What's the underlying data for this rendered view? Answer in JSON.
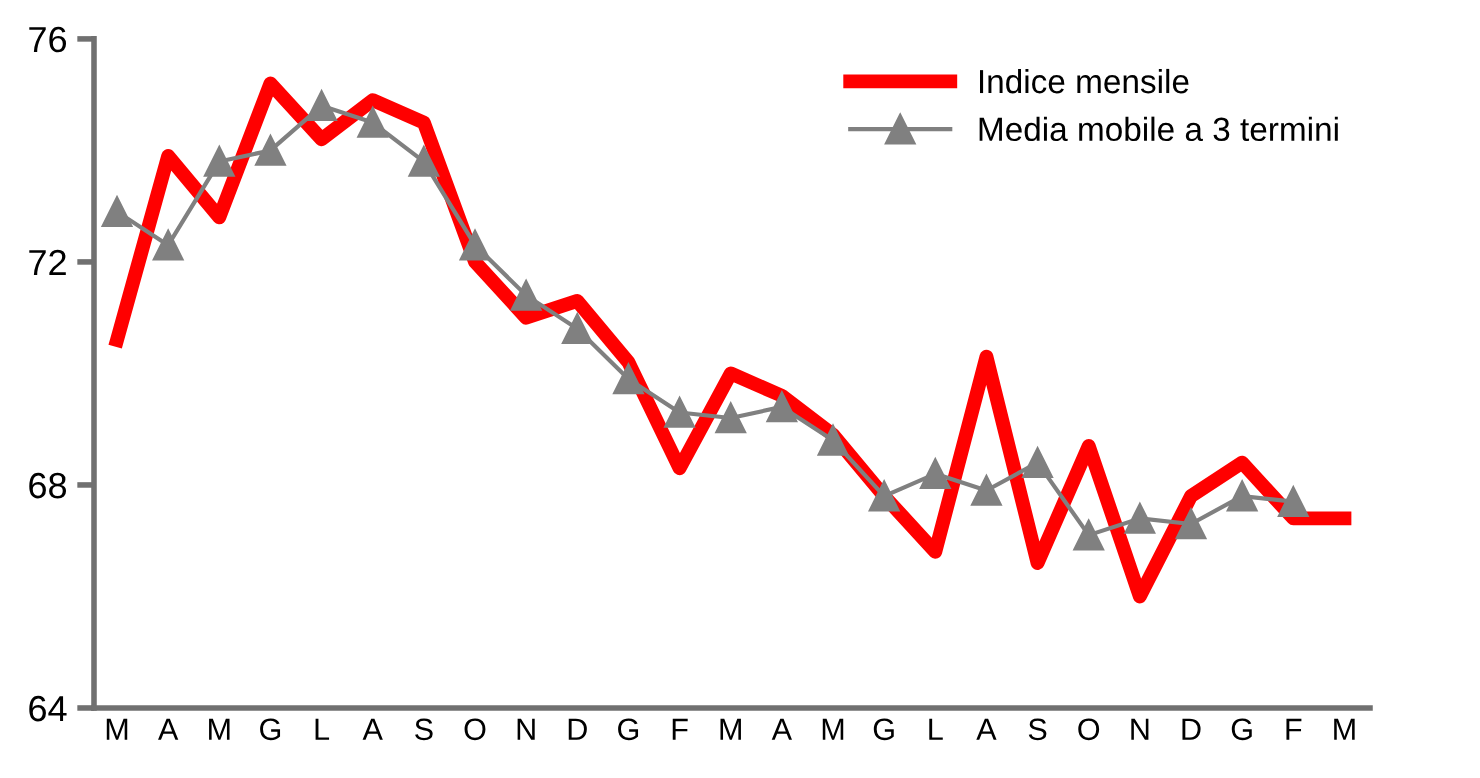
{
  "chart_data": {
    "type": "line",
    "categories": [
      "M",
      "A",
      "M",
      "G",
      "L",
      "A",
      "S",
      "O",
      "N",
      "D",
      "G",
      "F",
      "M",
      "A",
      "M",
      "G",
      "L",
      "A",
      "S",
      "O",
      "N",
      "D",
      "G",
      "F",
      "M"
    ],
    "series": [
      {
        "name": "Indice mensile",
        "color": "#ff0000",
        "marker": "none",
        "values": [
          70.6,
          73.9,
          72.8,
          75.2,
          74.2,
          74.9,
          74.5,
          72.0,
          71.0,
          71.3,
          70.2,
          68.3,
          70.0,
          69.6,
          68.9,
          67.8,
          66.8,
          70.3,
          66.6,
          68.7,
          66.0,
          67.8,
          68.4,
          67.4,
          67.4
        ]
      },
      {
        "name": "Media mobile a 3 termini",
        "color": "#808080",
        "marker": "triangle",
        "values": [
          72.9,
          72.3,
          73.8,
          74.0,
          74.8,
          74.5,
          73.8,
          72.3,
          71.4,
          70.8,
          69.9,
          69.3,
          69.2,
          69.4,
          68.8,
          67.8,
          68.2,
          67.9,
          68.4,
          67.1,
          67.4,
          67.3,
          67.8,
          67.7,
          null
        ]
      }
    ],
    "ylim": [
      64,
      76
    ],
    "yticks": [
      64,
      68,
      72,
      76
    ],
    "grid": false,
    "legend": "top right",
    "line_style": "solid"
  }
}
